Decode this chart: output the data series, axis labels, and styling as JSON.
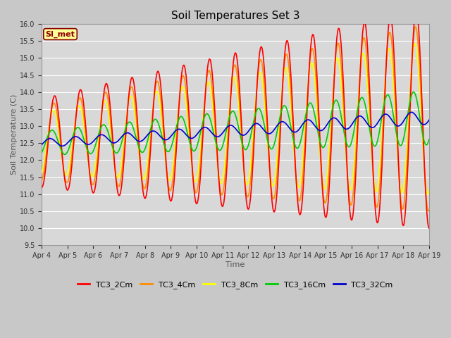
{
  "title": "Soil Temperatures Set 3",
  "xlabel": "Time",
  "ylabel": "Soil Temperature (C)",
  "ylim": [
    9.5,
    16.0
  ],
  "yticks": [
    9.5,
    10.0,
    10.5,
    11.0,
    11.5,
    12.0,
    12.5,
    13.0,
    13.5,
    14.0,
    14.5,
    15.0,
    15.5,
    16.0
  ],
  "xtick_labels": [
    "Apr 4",
    "Apr 5",
    "Apr 6",
    "Apr 7",
    "Apr 8",
    "Apr 9",
    "Apr 10",
    "Apr 11",
    "Apr 12",
    "Apr 13",
    "Apr 14",
    "Apr 15",
    "Apr 16",
    "Apr 17",
    "Apr 18",
    "Apr 19"
  ],
  "series_colors": [
    "#ff0000",
    "#ff8c00",
    "#ffff00",
    "#00cc00",
    "#0000cd"
  ],
  "series_labels": [
    "TC3_2Cm",
    "TC3_4Cm",
    "TC3_8Cm",
    "TC3_16Cm",
    "TC3_32Cm"
  ],
  "fig_bg_color": "#c8c8c8",
  "plot_bg_color": "#d8d8d8",
  "annotation_text": "SI_met",
  "annotation_bg": "#ffff99",
  "annotation_border": "#8b0000",
  "annotation_text_color": "#8b0000",
  "grid_color": "#ffffff",
  "line_width": 1.2
}
